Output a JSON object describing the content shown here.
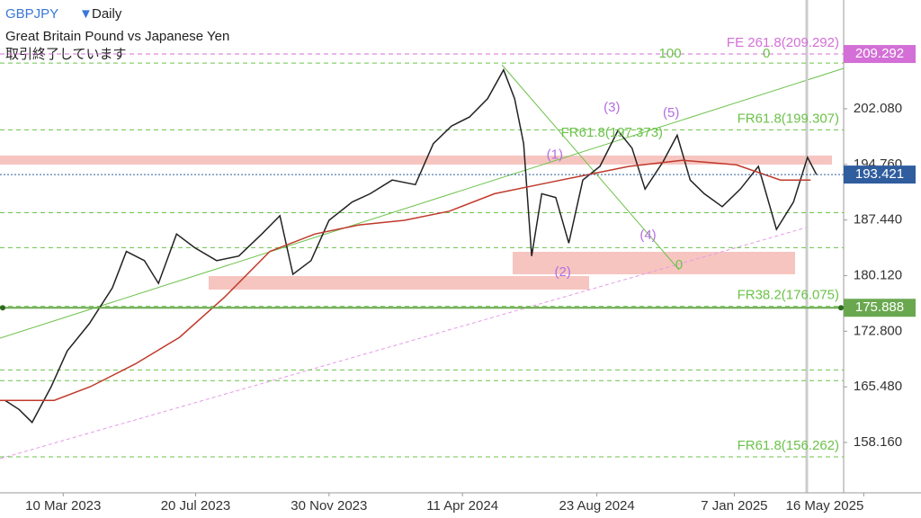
{
  "chart_data": {
    "type": "line",
    "title": "GBPJPY",
    "interval": "Daily",
    "subtitle": "Great Britain Pound vs Japanese Yen",
    "status": "取引終了しています",
    "xlim": [
      "2023-01-06",
      "2025-04-26"
    ],
    "xticks": [
      {
        "value": "2023-03-10",
        "label": "10 Mar 2023"
      },
      {
        "value": "2023-07-20",
        "label": "20 Jul 2023"
      },
      {
        "value": "2023-11-30",
        "label": "30 Nov 2023"
      },
      {
        "value": "2024-04-11",
        "label": "11 Apr 2024"
      },
      {
        "value": "2024-08-23",
        "label": "23 Aug 2024"
      },
      {
        "value": "2025-01-07",
        "label": "7 Jan 2025"
      },
      {
        "value": "2025-05-16",
        "label": "16 May 2025"
      }
    ],
    "ylim": [
      151.53,
      216.4
    ],
    "yticks": [
      {
        "value": 158.16,
        "label": "158.160"
      },
      {
        "value": 165.48,
        "label": "165.480"
      },
      {
        "value": 172.8,
        "label": "172.800"
      },
      {
        "value": 180.12,
        "label": "180.120"
      },
      {
        "value": 187.44,
        "label": "187.440"
      },
      {
        "value": 194.76,
        "label": "194.760"
      },
      {
        "value": 202.08,
        "label": "202.080"
      }
    ],
    "x": [
      "2023-01-11",
      "2023-01-25",
      "2023-02-07",
      "2023-02-26",
      "2023-03-14",
      "2023-04-05",
      "2023-04-28",
      "2023-05-12",
      "2023-05-30",
      "2023-06-13",
      "2023-07-01",
      "2023-07-19",
      "2023-08-10",
      "2023-09-01",
      "2023-09-24",
      "2023-10-12",
      "2023-10-25",
      "2023-11-12",
      "2023-11-30",
      "2023-12-23",
      "2024-01-10",
      "2024-02-01",
      "2024-02-24",
      "2024-03-13",
      "2024-03-31",
      "2024-04-18",
      "2024-05-06",
      "2024-05-22",
      "2024-06-02",
      "2024-06-11",
      "2024-06-19",
      "2024-06-29",
      "2024-07-13",
      "2024-07-26",
      "2024-08-09",
      "2024-08-26",
      "2024-09-13",
      "2024-09-27",
      "2024-10-10",
      "2024-10-28",
      "2024-11-11",
      "2024-11-24",
      "2024-12-08",
      "2024-12-26",
      "2025-01-13",
      "2025-01-31",
      "2025-02-18",
      "2025-03-07",
      "2025-03-21",
      "2025-03-30"
    ],
    "series": [
      {
        "color": "#222222",
        "values": [
          163.7,
          162.5,
          160.8,
          165.5,
          170.2,
          173.8,
          178.5,
          183.3,
          182.1,
          179.1,
          185.6,
          183.8,
          182.1,
          182.7,
          185.6,
          188.0,
          180.3,
          182.1,
          187.4,
          189.8,
          190.9,
          192.7,
          192.1,
          197.5,
          199.8,
          201.0,
          203.4,
          207.2,
          203.4,
          197.5,
          182.7,
          190.9,
          190.4,
          184.4,
          192.7,
          194.5,
          199.2,
          196.9,
          191.5,
          195.1,
          198.6,
          192.7,
          190.9,
          189.2,
          191.5,
          194.5,
          186.2,
          189.8,
          195.7,
          193.4
        ]
      },
      {
        "color": "#c0392b",
        "x": [
          "2023-01-06",
          "2023-03-01",
          "2023-04-06",
          "2023-05-21",
          "2023-07-04",
          "2023-08-18",
          "2023-10-02",
          "2023-11-16",
          "2023-12-30",
          "2024-02-13",
          "2024-03-29",
          "2024-05-13",
          "2024-06-26",
          "2024-08-10",
          "2024-09-24",
          "2024-11-16",
          "2025-01-09",
          "2025-02-22",
          "2025-03-24"
        ],
        "values": [
          163.7,
          163.7,
          165.5,
          168.5,
          172.0,
          177.3,
          183.3,
          185.6,
          186.8,
          187.4,
          188.6,
          190.9,
          192.1,
          193.3,
          194.5,
          195.3,
          194.7,
          192.7,
          192.7
        ]
      }
    ],
    "levels": [
      {
        "label": "FE 261.8(209.292)",
        "value": 209.292,
        "color": "#d36fd6"
      },
      {
        "label": "FR61.8(199.307)",
        "value": 199.307,
        "color": "#6cc24a"
      },
      {
        "label": "FR38.2(176.075)",
        "value": 176.075,
        "color": "#6cc24a"
      },
      {
        "label": "FR61.8(156.262)",
        "value": 156.262,
        "color": "#6cc24a"
      }
    ],
    "fib_lines": [
      208.1,
      188.4,
      183.8,
      167.7,
      166.3
    ],
    "price_tags": [
      {
        "value": 209.292,
        "label": "209.292",
        "color": "#d36fd6"
      },
      {
        "value": 193.421,
        "label": "193.421",
        "color": "#2f5d9e"
      },
      {
        "value": 175.888,
        "label": "175.888",
        "color": "#6aa84f"
      }
    ],
    "annotations": [
      {
        "label": "(1)",
        "x": "2024-07-12",
        "y": 196.0,
        "color": "#b36ee0"
      },
      {
        "label": "(2)",
        "x": "2024-07-20",
        "y": 180.5,
        "color": "#b36ee0"
      },
      {
        "label": "(3)",
        "x": "2024-09-07",
        "y": 202.2,
        "color": "#b36ee0"
      },
      {
        "label": "(4)",
        "x": "2024-10-13",
        "y": 185.4,
        "color": "#b36ee0"
      },
      {
        "label": "(5)",
        "x": "2024-11-05",
        "y": 201.5,
        "color": "#b36ee0"
      },
      {
        "label": "FR61.8(197.373)",
        "x": "2024-09-07",
        "y": 198.9,
        "color": "#6cc24a"
      },
      {
        "label": 100,
        "x": "2024-11-04",
        "y": 209.3,
        "color": "#6cc24a"
      },
      {
        "label": 0,
        "x": "2025-02-08",
        "y": 209.3,
        "color": "#6cc24a"
      },
      {
        "label": 0,
        "x": "2024-11-13",
        "y": 181.5,
        "color": "#6cc24a"
      }
    ]
  }
}
